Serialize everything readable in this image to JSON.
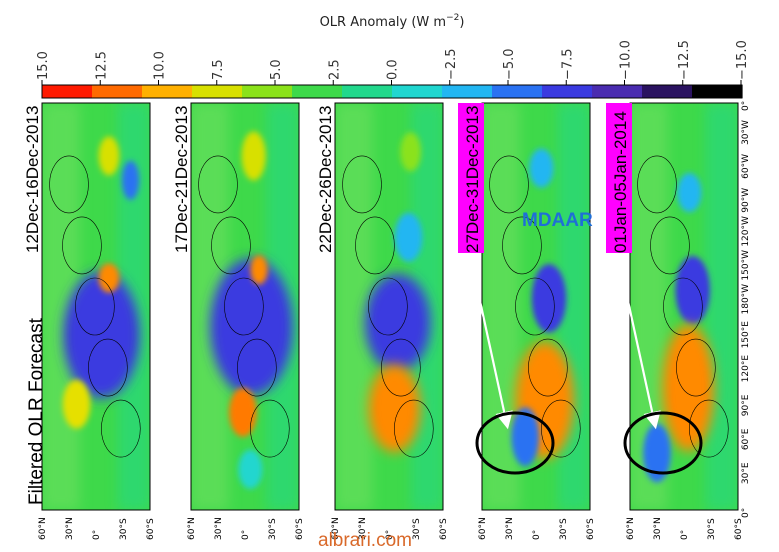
{
  "chart_data": {
    "type": "heatmap",
    "title": "OLR Anomaly (W m -2)",
    "title_main": "OLR Anomaly (W m",
    "title_sup": "−2",
    "title_close": ")",
    "colorbar": {
      "ticks": [
        "15.0",
        "12.5",
        "10.0",
        "7.5",
        "5.0",
        "2.5",
        "0.0",
        "−2.5",
        "−5.0",
        "−7.5",
        "−10.0",
        "−12.5",
        "−15.0"
      ],
      "range": [
        15.0,
        -15.0
      ],
      "colors": [
        "#ff1a00",
        "#ff6a00",
        "#ffb000",
        "#d8e000",
        "#8be21a",
        "#3ed94a",
        "#22d88c",
        "#20d6cf",
        "#22b6f2",
        "#2a72f2",
        "#3a3ae0",
        "#4a2cb0",
        "#2a1260",
        "#000000"
      ]
    },
    "main_label": "Filtered OLR  Forecast",
    "panels": [
      {
        "date": "12Dec-16Dec-2013",
        "highlight": false
      },
      {
        "date": "17Dec-21Dec-2013",
        "highlight": false
      },
      {
        "date": "22Dec-26Dec-2013",
        "highlight": false
      },
      {
        "date": "27Dec-31Dec-2013",
        "highlight": true,
        "annotation": "MDAAR"
      },
      {
        "date": "01Jan-05Jan-2014",
        "highlight": true
      }
    ],
    "lat_ticks": [
      "60°N",
      "30°N",
      "0°",
      "30°S",
      "60°S"
    ],
    "lon_ticks": [
      "0°",
      "30°E",
      "60°E",
      "90°E",
      "120°E",
      "150°E",
      "180°W",
      "150°W",
      "120°W",
      "90°W",
      "60°W",
      "30°W",
      "0°"
    ],
    "highlight_color": "#ff00ff"
  },
  "watermark": "albrari.com"
}
